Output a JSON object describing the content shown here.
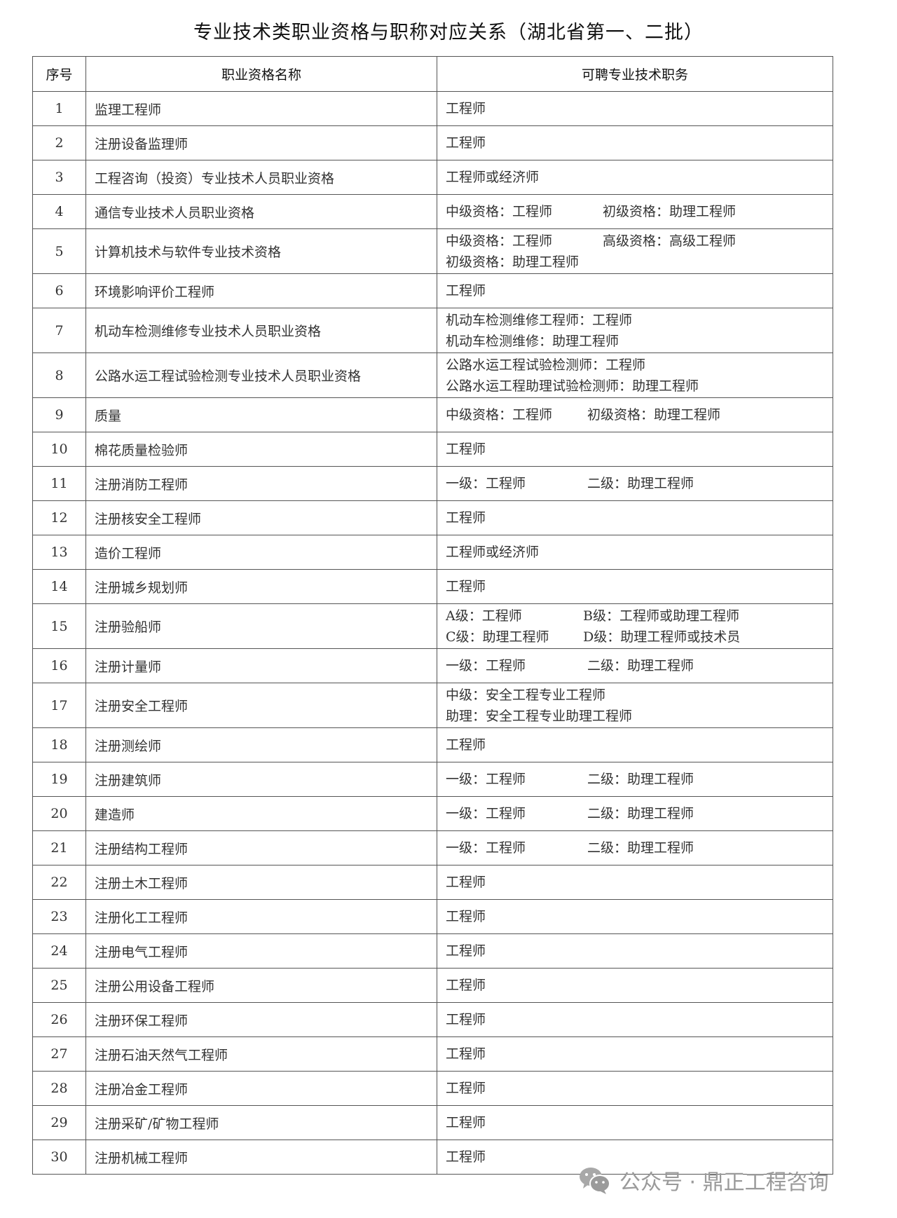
{
  "title": "专业技术类职业资格与职称对应关系（湖北省第一、二批）",
  "headers": [
    "序号",
    "职业资格名称",
    "可聘专业技术职务"
  ],
  "rows": [
    {
      "no": "1",
      "name": "监理工程师",
      "posts": [
        {
          "a": "工程师"
        }
      ]
    },
    {
      "no": "2",
      "name": "注册设备监理师",
      "posts": [
        {
          "a": "工程师"
        }
      ]
    },
    {
      "no": "3",
      "name": "工程咨询（投资）专业技术人员职业资格",
      "posts": [
        {
          "a": "工程师或经济师"
        }
      ]
    },
    {
      "no": "4",
      "name": "通信专业技术人员职业资格",
      "posts": [
        {
          "a": "中级资格：工程师",
          "b": "初级资格：助理工程师"
        }
      ]
    },
    {
      "no": "5",
      "name": "计算机技术与软件专业技术资格",
      "posts": [
        {
          "a": "中级资格：工程师",
          "b": "高级资格：高级工程师"
        },
        {
          "a": "初级资格：助理工程师"
        }
      ]
    },
    {
      "no": "6",
      "name": "环境影响评价工程师",
      "posts": [
        {
          "a": "工程师"
        }
      ]
    },
    {
      "no": "7",
      "name": "机动车检测维修专业技术人员职业资格",
      "posts": [
        {
          "a": "机动车检测维修工程师：工程师"
        },
        {
          "a": "机动车检测维修：助理工程师"
        }
      ]
    },
    {
      "no": "8",
      "name": "公路水运工程试验检测专业技术人员职业资格",
      "posts": [
        {
          "a": "公路水运工程试验检测师：工程师"
        },
        {
          "a": "公路水运工程助理试验检测师：助理工程师"
        }
      ]
    },
    {
      "no": "9",
      "name": "质量",
      "posts": [
        {
          "a": "中级资格：工程师",
          "b": "初级资格：助理工程师"
        }
      ]
    },
    {
      "no": "10",
      "name": "棉花质量检验师",
      "posts": [
        {
          "a": "工程师"
        }
      ]
    },
    {
      "no": "11",
      "name": "注册消防工程师",
      "posts": [
        {
          "a": "一级：工程师",
          "b": "二级：助理工程师"
        }
      ]
    },
    {
      "no": "12",
      "name": "注册核安全工程师",
      "posts": [
        {
          "a": "工程师"
        }
      ]
    },
    {
      "no": "13",
      "name": "造价工程师",
      "posts": [
        {
          "a": "工程师或经济师"
        }
      ]
    },
    {
      "no": "14",
      "name": "注册城乡规划师",
      "posts": [
        {
          "a": "工程师"
        }
      ]
    },
    {
      "no": "15",
      "name": "注册验船师",
      "posts": [
        {
          "a": "A级：工程师",
          "b": "B级：工程师或助理工程师"
        },
        {
          "a": "C级：助理工程师",
          "b": "D级：助理工程师或技术员"
        }
      ]
    },
    {
      "no": "16",
      "name": "注册计量师",
      "posts": [
        {
          "a": "一级：工程师",
          "b": "二级：助理工程师"
        }
      ]
    },
    {
      "no": "17",
      "name": "注册安全工程师",
      "posts": [
        {
          "a": "中级：安全工程专业工程师"
        },
        {
          "a": "助理：安全工程专业助理工程师"
        }
      ]
    },
    {
      "no": "18",
      "name": "注册测绘师",
      "posts": [
        {
          "a": "工程师"
        }
      ]
    },
    {
      "no": "19",
      "name": "注册建筑师",
      "posts": [
        {
          "a": "一级：工程师",
          "b": "二级：助理工程师"
        }
      ]
    },
    {
      "no": "20",
      "name": "建造师",
      "posts": [
        {
          "a": "一级：工程师",
          "b": "二级：助理工程师"
        }
      ]
    },
    {
      "no": "21",
      "name": "注册结构工程师",
      "posts": [
        {
          "a": "一级：工程师",
          "b": "二级：助理工程师"
        }
      ]
    },
    {
      "no": "22",
      "name": "注册土木工程师",
      "posts": [
        {
          "a": "工程师"
        }
      ]
    },
    {
      "no": "23",
      "name": "注册化工工程师",
      "posts": [
        {
          "a": "工程师"
        }
      ]
    },
    {
      "no": "24",
      "name": "注册电气工程师",
      "posts": [
        {
          "a": "工程师"
        }
      ]
    },
    {
      "no": "25",
      "name": "注册公用设备工程师",
      "posts": [
        {
          "a": "工程师"
        }
      ]
    },
    {
      "no": "26",
      "name": "注册环保工程师",
      "posts": [
        {
          "a": "工程师"
        }
      ]
    },
    {
      "no": "27",
      "name": "注册石油天然气工程师",
      "posts": [
        {
          "a": "工程师"
        }
      ]
    },
    {
      "no": "28",
      "name": "注册冶金工程师",
      "posts": [
        {
          "a": "工程师"
        }
      ]
    },
    {
      "no": "29",
      "name": "注册采矿/矿物工程师",
      "posts": [
        {
          "a": "工程师"
        }
      ]
    },
    {
      "no": "30",
      "name": "注册机械工程师",
      "posts": [
        {
          "a": "工程师"
        }
      ]
    }
  ],
  "watermark": {
    "icon": "wechat-icon",
    "text": "公众号 · 鼎正工程咨询"
  }
}
